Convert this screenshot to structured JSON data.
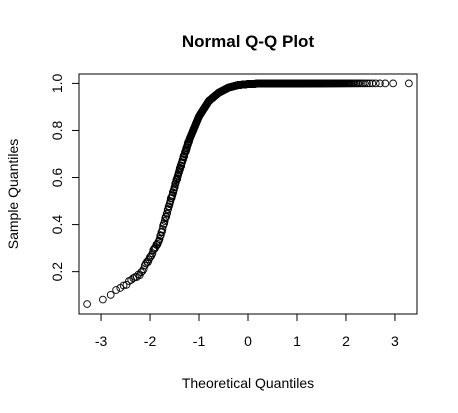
{
  "chart_data": {
    "type": "scatter",
    "title": "Normal Q-Q Plot",
    "xlabel": "Theoretical Quantiles",
    "ylabel": "Sample Quantiles",
    "xlim": [
      -3.45,
      3.45
    ],
    "ylim": [
      0.02,
      1.04
    ],
    "xticks": [
      -3,
      -2,
      -1,
      0,
      1,
      2,
      3
    ],
    "xtick_labels": [
      "-3",
      "-2",
      "-1",
      "0",
      "1",
      "2",
      "3"
    ],
    "yticks": [
      0.2,
      0.4,
      0.6,
      0.8,
      1.0
    ],
    "ytick_labels": [
      "0.2",
      "0.4",
      "0.6",
      "0.8",
      "1.0"
    ],
    "grid": false,
    "marker": "open-circle",
    "n_points": 1000,
    "curve": {
      "description": "sample quantile vs theoretical quantile",
      "x": [
        -3.29,
        -3.0,
        -2.8,
        -2.6,
        -2.4,
        -2.2,
        -2.0,
        -1.8,
        -1.6,
        -1.4,
        -1.2,
        -1.0,
        -0.8,
        -0.6,
        -0.4,
        -0.2,
        0.0,
        0.2,
        0.5,
        3.29
      ],
      "y": [
        0.06,
        0.08,
        0.1,
        0.13,
        0.16,
        0.19,
        0.26,
        0.34,
        0.49,
        0.63,
        0.76,
        0.86,
        0.925,
        0.96,
        0.982,
        0.993,
        0.997,
        0.999,
        1.0,
        1.0
      ]
    }
  }
}
